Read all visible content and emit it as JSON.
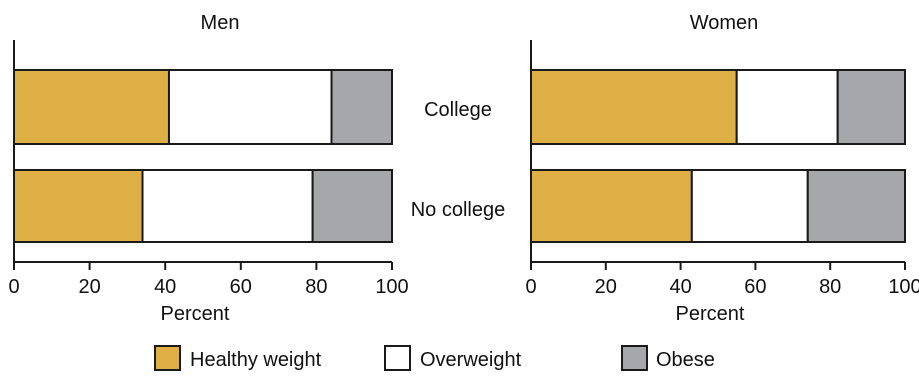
{
  "chart_data": [
    {
      "type": "bar",
      "stacked": true,
      "orientation": "horizontal",
      "title": "Men",
      "xlabel": "Percent",
      "xlim": [
        0,
        100
      ],
      "xticks": [
        0,
        20,
        40,
        60,
        80,
        100
      ],
      "categories": [
        "College",
        "No college"
      ],
      "series": [
        {
          "name": "Healthy weight",
          "values": [
            41,
            34
          ]
        },
        {
          "name": "Overweight",
          "values": [
            43,
            45
          ]
        },
        {
          "name": "Obese",
          "values": [
            16,
            21
          ]
        }
      ]
    },
    {
      "type": "bar",
      "stacked": true,
      "orientation": "horizontal",
      "title": "Women",
      "xlabel": "Percent",
      "xlim": [
        0,
        100
      ],
      "xticks": [
        0,
        20,
        40,
        60,
        80,
        100
      ],
      "categories": [
        "College",
        "No college"
      ],
      "series": [
        {
          "name": "Healthy weight",
          "values": [
            55,
            43
          ]
        },
        {
          "name": "Overweight",
          "values": [
            27,
            31
          ]
        },
        {
          "name": "Obese",
          "values": [
            18,
            26
          ]
        }
      ]
    }
  ],
  "category_labels": [
    "College",
    "No college"
  ],
  "legend": {
    "placement": "bottom",
    "items": [
      {
        "label": "Healthy weight",
        "color": "#ddaf44"
      },
      {
        "label": "Overweight",
        "color": "#ffffff"
      },
      {
        "label": "Obese",
        "color": "#a6a7ab"
      }
    ]
  },
  "colors": {
    "healthy": "#ddaf44",
    "overweight": "#ffffff",
    "obese": "#a6a7ab",
    "stroke": "#1a1a1a"
  }
}
